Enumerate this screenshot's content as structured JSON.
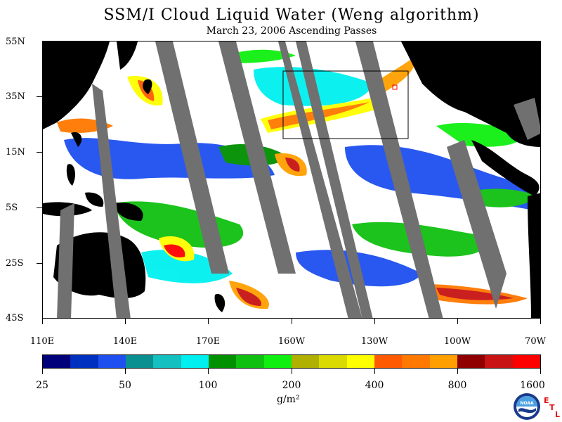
{
  "title": "SSM/I Cloud Liquid Water (Weng algorithm)",
  "subtitle": "March 23, 2006  Ascending Passes",
  "lat_labels": [
    "55N",
    "35N",
    "15N",
    "5S",
    "25S",
    "45S"
  ],
  "lon_labels": [
    "110E",
    "140E",
    "170E",
    "160W",
    "130W",
    "100W",
    "70W"
  ],
  "colorbar": {
    "colors": [
      "#00007a",
      "#0030c0",
      "#1e50f0",
      "#0a9090",
      "#14c0c0",
      "#00f0f0",
      "#009000",
      "#10c010",
      "#10f010",
      "#b0b000",
      "#dada00",
      "#ffff00",
      "#ff5a00",
      "#ff7800",
      "#ffa000",
      "#900000",
      "#c81414",
      "#ff0000"
    ],
    "labels": [
      "25",
      "50",
      "100",
      "200",
      "400",
      "800",
      "1600"
    ],
    "units": "g/m²"
  },
  "colors": {
    "land": "#000000",
    "no_data": "#707070",
    "clear": "#ffffff"
  },
  "logo": {
    "text": "NOAA",
    "etl": [
      "E",
      "T",
      "L"
    ]
  }
}
